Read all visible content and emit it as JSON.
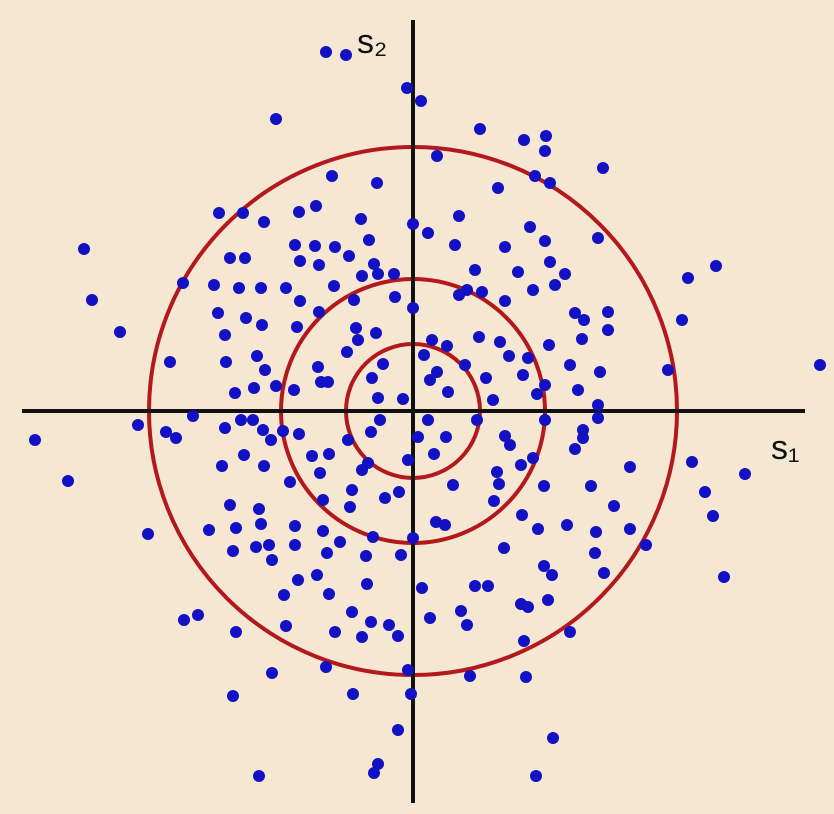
{
  "chart_data": {
    "type": "scatter",
    "x_label": "s₁",
    "y_label": "s₂",
    "xlim": [
      -413,
      421
    ],
    "ylim": [
      -403,
      411
    ],
    "color": "#1212c4",
    "circle_radii": [
      67,
      132,
      264
    ],
    "circle_color": "#b3191c",
    "x": [
      -87,
      -67,
      -6,
      8,
      -137,
      67,
      111,
      133,
      132,
      24,
      190,
      -81,
      -36,
      122,
      137,
      85,
      -194,
      -170,
      -114,
      -97,
      -149,
      -52,
      -44,
      0,
      46,
      15,
      117,
      132,
      185,
      -329,
      -183,
      -168,
      -118,
      -113,
      -98,
      -78,
      -64,
      -94,
      -39,
      42,
      62,
      92,
      105,
      137,
      152,
      142,
      303,
      275,
      -230,
      -199,
      -174,
      -152,
      -127,
      -51,
      -35,
      -19,
      -79,
      -113,
      -59,
      -18,
      0,
      46,
      54,
      69,
      92,
      120,
      162,
      171,
      195,
      -321,
      -195,
      -188,
      -167,
      -151,
      -94,
      -116,
      -57,
      -37,
      19,
      34,
      66,
      87,
      96,
      136,
      169,
      195,
      269,
      -293,
      -243,
      -187,
      -156,
      -148,
      -95,
      -66,
      -55,
      -41,
      -30,
      11,
      24,
      52,
      73,
      110,
      115,
      157,
      187,
      255,
      407,
      -178,
      -159,
      -137,
      -119,
      -92,
      -85,
      -35,
      -10,
      17,
      35,
      80,
      124,
      132,
      165,
      185,
      185,
      -275,
      -247,
      -237,
      -220,
      -172,
      -160,
      -150,
      -130,
      -114,
      -65,
      -42,
      -33,
      5,
      15,
      33,
      64,
      92,
      97,
      132,
      170,
      -378,
      -188,
      -142,
      -101,
      -84,
      -45,
      -5,
      21,
      84,
      120,
      162,
      170,
      217,
      279,
      332,
      -345,
      -191,
      -169,
      -149,
      -123,
      -93,
      -61,
      -51,
      -14,
      40,
      86,
      108,
      131,
      178,
      292,
      -183,
      -154,
      -90,
      -63,
      -28,
      23,
      32,
      81,
      109,
      154,
      201,
      233,
      300,
      -265,
      -177,
      -204,
      -152,
      -118,
      -90,
      -73,
      -40,
      0,
      125,
      183,
      217,
      -180,
      -157,
      -144,
      -118,
      -86,
      -47,
      -12,
      91,
      131,
      182,
      139,
      191,
      311,
      -141,
      -96,
      -115,
      -46,
      9,
      62,
      75,
      108,
      115,
      135,
      -129,
      -84,
      -229,
      -215,
      -61,
      -42,
      -24,
      17,
      48,
      54,
      -127,
      -177,
      -78,
      -51,
      -15,
      111,
      157,
      -141,
      -87,
      -5,
      57,
      -180,
      -60,
      -2,
      113,
      -15,
      140,
      -35,
      -39,
      -154,
      123
    ],
    "values": [
      359,
      356,
      323,
      310,
      292,
      282,
      271,
      275,
      260,
      255,
      243,
      235,
      228,
      235,
      228,
      223,
      198,
      198,
      199,
      205,
      189,
      192,
      171,
      187,
      195,
      178,
      184,
      170,
      173,
      162,
      153,
      153,
      166,
      150,
      165,
      164,
      155,
      146,
      147,
      166,
      141,
      164,
      139,
      149,
      137,
      126,
      145,
      133,
      128,
      126,
      123,
      123,
      123,
      135,
      137,
      137,
      125,
      110,
      111,
      114,
      103,
      116,
      121,
      119,
      110,
      121,
      98,
      91,
      99,
      111,
      98,
      76,
      93,
      86,
      99,
      84,
      83,
      78,
      71,
      65,
      74,
      69,
      55,
      66,
      72,
      81,
      91,
      79,
      49,
      49,
      55,
      41,
      44,
      59,
      71,
      33,
      47,
      56,
      39,
      46,
      33,
      36,
      53,
      46,
      39,
      41,
      46,
      18,
      23,
      25,
      21,
      29,
      29,
      13,
      12,
      31,
      19,
      11,
      17,
      26,
      21,
      6,
      -7,
      -14,
      -21,
      -27,
      -5,
      -9,
      -9,
      -19,
      -20,
      -23,
      -29,
      -21,
      -9,
      -26,
      -9,
      -26,
      -9,
      -25,
      -34,
      -9,
      -19,
      -29,
      -17,
      -29,
      -45,
      -43,
      -52,
      -49,
      -43,
      -61,
      -47,
      -38,
      -27,
      -56,
      -51,
      -63,
      -70,
      -55,
      -44,
      -55,
      -71,
      -62,
      -79,
      -59,
      -81,
      -74,
      -73,
      -54,
      -75,
      -75,
      -81,
      -94,
      -98,
      -89,
      -96,
      -87,
      -111,
      -114,
      -90,
      -104,
      -114,
      -95,
      -134,
      -105,
      -123,
      -117,
      -119,
      -113,
      -115,
      -120,
      -131,
      -126,
      -127,
      -118,
      -121,
      -118,
      -140,
      -136,
      -134,
      -134,
      -142,
      -145,
      -144,
      -137,
      -155,
      -142,
      -164,
      -162,
      -166,
      -149,
      -164,
      -169,
      -173,
      -177,
      -175,
      -175,
      -193,
      -196,
      -189,
      -184,
      -183,
      -209,
      -204,
      -201,
      -211,
      -214,
      -207,
      -200,
      -214,
      -215,
      -221,
      -221,
      -226,
      -225,
      -230,
      -221,
      -262,
      -256,
      -259,
      -265,
      -285,
      -283,
      -283,
      -266,
      -319,
      -327,
      -353,
      -362,
      -365,
      -365
    ]
  }
}
